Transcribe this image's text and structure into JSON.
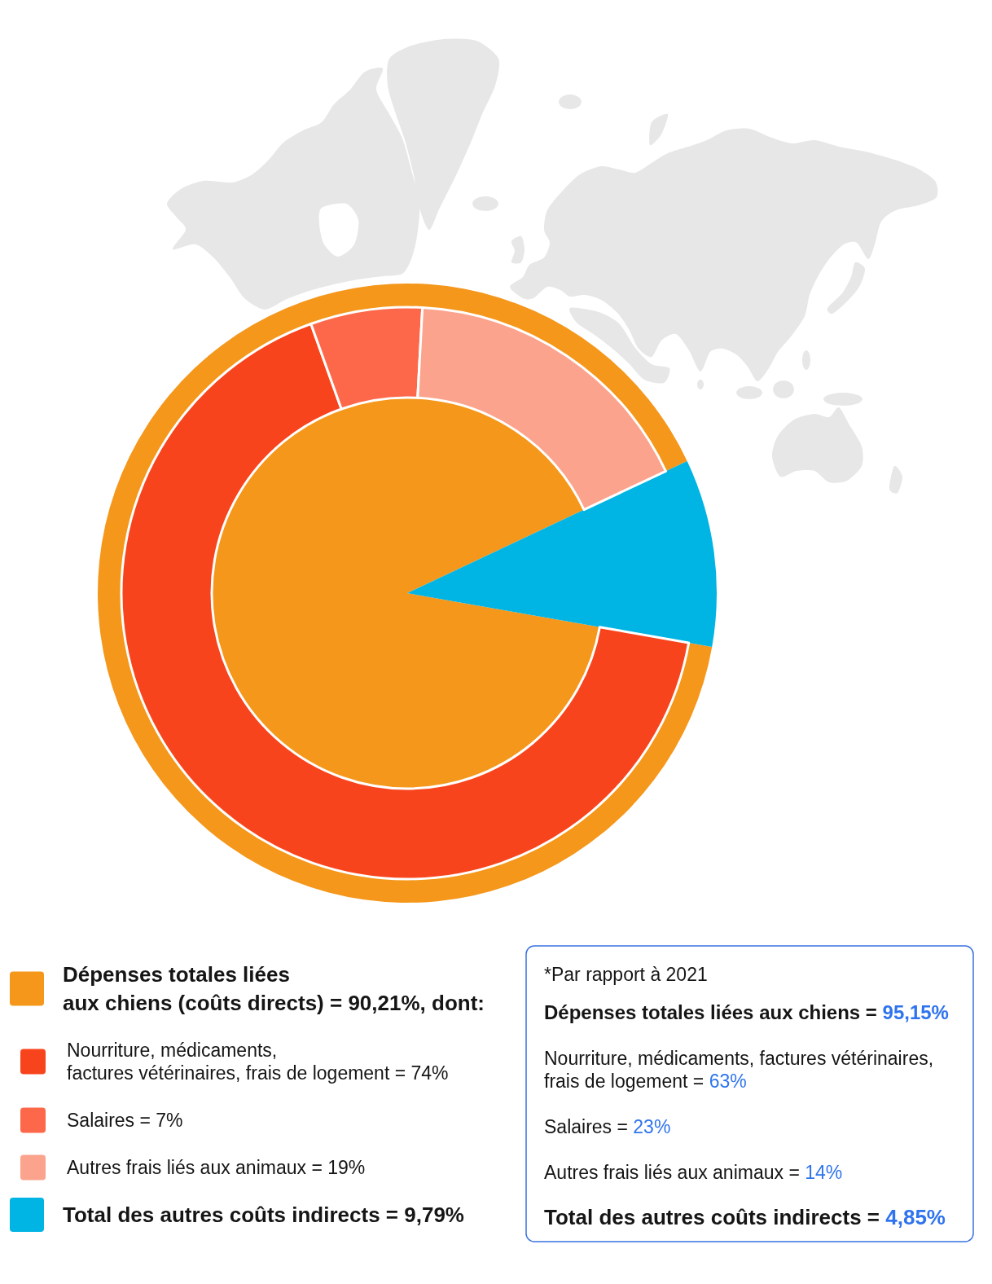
{
  "chart_data": [
    {
      "type": "pie",
      "categories": [
        "Dépenses totales liées aux chiens (coûts directs)",
        "Total des autres coûts indirects"
      ],
      "values": [
        90.21,
        9.79
      ],
      "value_labels": [
        "= 90,21%, dont:",
        "= 9,79%"
      ],
      "colors": [
        "#f4971b",
        "#00b4e4"
      ],
      "legend": "bottom"
    },
    {
      "type": "donut",
      "categories": [
        "Nourriture, médicaments, factures vétérinaires, frais de logement",
        "Salaires",
        "Autres frais liés aux animaux"
      ],
      "values": [
        74,
        7,
        19
      ],
      "value_labels": [
        "= 74%",
        "= 7%",
        "= 19%"
      ],
      "colors": [
        "#f8441c",
        "#fe684a",
        "#fba38d"
      ],
      "legend": "bottom"
    },
    {
      "type": "other",
      "title": "*Par rapport à 2021",
      "annotations": [
        "Dépenses totales liées aux chiens = 95,15%",
        "Nourriture, médicaments, factures vétérinaires, frais de logement = 63%",
        "Salaires = 23%",
        "Autres frais liés aux animaux = 14%",
        "Total des autres coûts indirects = 4,85%"
      ]
    }
  ]
}
